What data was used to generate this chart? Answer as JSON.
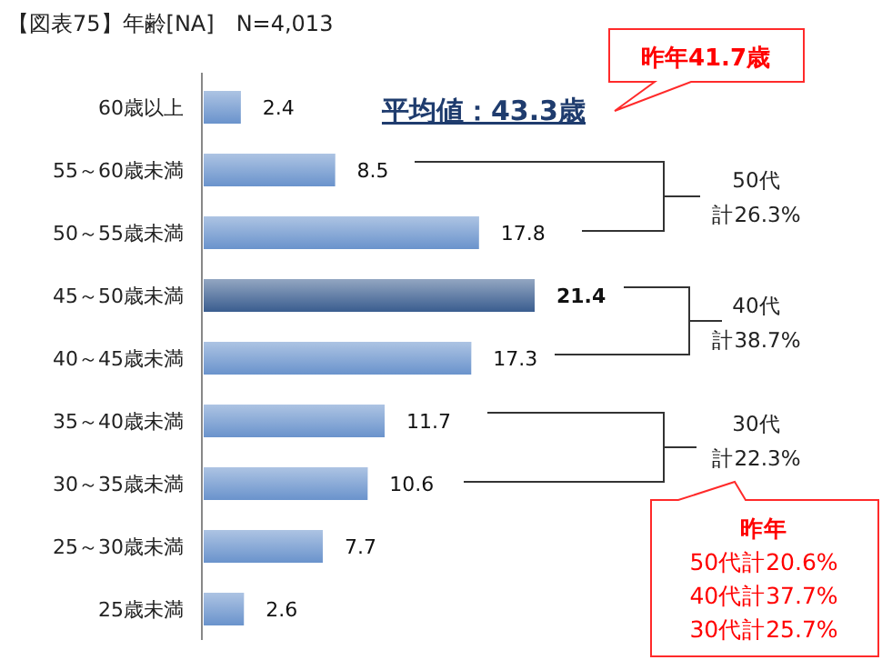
{
  "chart_data": {
    "type": "bar",
    "orientation": "horizontal",
    "title": "【図表75】年齢[NA]　N=4,013",
    "categories": [
      "60歳以上",
      "55～60歳未満",
      "50～55歳未満",
      "45～50歳未満",
      "40～45歳未満",
      "35～40歳未満",
      "30～35歳未満",
      "25～30歳未満",
      "25歳未満"
    ],
    "values": [
      2.4,
      8.5,
      17.8,
      21.4,
      17.3,
      11.7,
      10.6,
      7.7,
      2.6
    ],
    "colors": [
      "#6a93cc",
      "#6a93cc",
      "#6a93cc",
      "#3a5d8f",
      "#6a93cc",
      "#6a93cc",
      "#6a93cc",
      "#6a93cc",
      "#6a93cc"
    ],
    "data_labels": true,
    "annotations": [
      "平均値：43.3歳",
      "昨年41.7歳",
      "50代",
      "計26.3%",
      "40代",
      "計38.7%",
      "30代",
      "計22.3%",
      "昨年\n50代計20.6%\n40代計37.7%\n30代計25.7%"
    ]
  }
}
